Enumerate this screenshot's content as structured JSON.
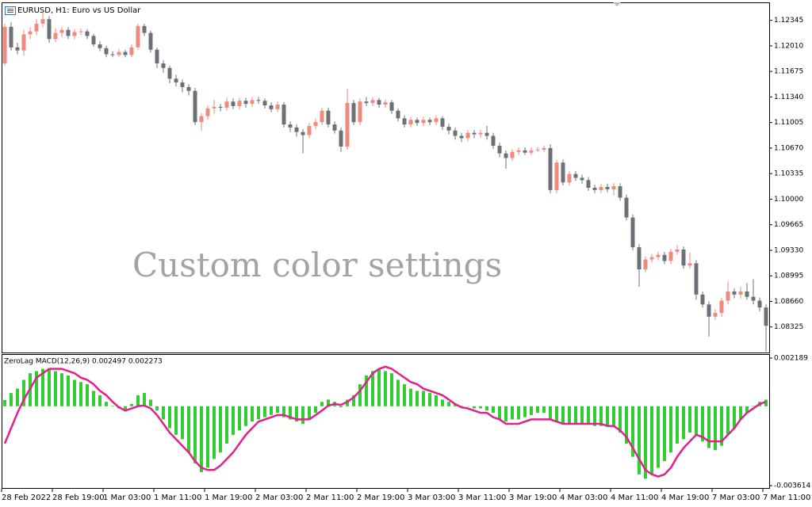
{
  "chart_data": [
    {
      "type": "candlestick",
      "title": "EURUSD, H1:  Euro vs US Dollar",
      "annotation": "Custom color settings",
      "categories": [
        "28 Feb 2022",
        null,
        null,
        null,
        null,
        null,
        null,
        null,
        "28 Feb 19:00",
        null,
        null,
        null,
        null,
        null,
        null,
        null,
        "1 Mar 03:00",
        null,
        null,
        null,
        null,
        null,
        null,
        null,
        "1 Mar 11:00",
        null,
        null,
        null,
        null,
        null,
        null,
        null,
        "1 Mar 19:00",
        null,
        null,
        null,
        null,
        null,
        null,
        null,
        "2 Mar 03:00",
        null,
        null,
        null,
        null,
        null,
        null,
        null,
        "2 Mar 11:00",
        null,
        null,
        null,
        null,
        null,
        null,
        null,
        "2 Mar 19:00",
        null,
        null,
        null,
        null,
        null,
        null,
        null,
        "3 Mar 03:00",
        null,
        null,
        null,
        null,
        null,
        null,
        null,
        "3 Mar 11:00",
        null,
        null,
        null,
        null,
        null,
        null,
        null,
        "3 Mar 19:00",
        null,
        null,
        null,
        null,
        null,
        null,
        null,
        "4 Mar 03:00",
        null,
        null,
        null,
        null,
        null,
        null,
        null,
        "4 Mar 11:00",
        null,
        null,
        null,
        null,
        null,
        null,
        null,
        "4 Mar 19:00",
        null,
        null,
        null,
        null,
        null,
        null,
        null,
        "7 Mar 03:00",
        null,
        null,
        null,
        null,
        null,
        null,
        null,
        "7 Mar 11:00"
      ],
      "open": [
        1.1178,
        1.1226,
        1.1199,
        1.1195,
        1.1216,
        1.122,
        1.123,
        1.1236,
        1.121,
        1.1218,
        1.1222,
        1.1214,
        1.1219,
        1.122,
        1.1214,
        1.1203,
        1.1198,
        1.119,
        1.1189,
        1.1193,
        1.1189,
        1.1199,
        1.1227,
        1.1218,
        1.1196,
        1.1178,
        1.1172,
        1.1158,
        1.1153,
        1.1147,
        1.1142,
        1.1101,
        1.1109,
        1.1119,
        1.1121,
        1.112,
        1.1128,
        1.1122,
        1.1129,
        1.1125,
        1.113,
        1.1129,
        1.1123,
        1.1118,
        1.1124,
        1.1098,
        1.1094,
        1.1088,
        1.1084,
        1.1096,
        1.1101,
        1.1116,
        1.1098,
        1.109,
        1.1069,
        1.1126,
        1.1101,
        1.1128,
        1.1126,
        1.113,
        1.1124,
        1.1127,
        1.1116,
        1.1106,
        1.1098,
        1.1104,
        1.11,
        1.1104,
        1.1101,
        1.1106,
        1.1095,
        1.109,
        1.1083,
        1.108,
        1.1087,
        1.1085,
        1.1087,
        1.1083,
        1.107,
        1.106,
        1.1054,
        1.1062,
        1.1064,
        1.1061,
        1.1064,
        1.1065,
        1.1067,
        1.1012,
        1.1048,
        1.1022,
        1.1033,
        1.1028,
        1.1025,
        1.1015,
        1.1012,
        1.1016,
        1.1013,
        1.1017,
        1.1002,
        1.0976,
        1.0937,
        1.0908,
        1.0921,
        1.0924,
        1.0927,
        1.0919,
        1.0931,
        1.0934,
        1.0913,
        1.0916,
        1.0875,
        1.0862,
        1.0846,
        1.0851,
        1.0867,
        1.0879,
        1.0875,
        1.0879,
        1.0872,
        1.0867,
        1.0858
      ],
      "high": [
        1.123,
        1.1232,
        1.1205,
        1.1222,
        1.1225,
        1.1236,
        1.125,
        1.124,
        1.1224,
        1.1226,
        1.1226,
        1.1223,
        1.1224,
        1.1223,
        1.1217,
        1.1207,
        1.1201,
        1.1194,
        1.1197,
        1.1196,
        1.1203,
        1.123,
        1.123,
        1.1221,
        1.1199,
        1.1182,
        1.1175,
        1.1163,
        1.1157,
        1.1151,
        1.1146,
        1.1113,
        1.1123,
        1.113,
        1.1125,
        1.1133,
        1.1132,
        1.1133,
        1.1133,
        1.1134,
        1.1134,
        1.1132,
        1.1127,
        1.1128,
        1.1127,
        1.1102,
        1.1098,
        1.1092,
        1.11,
        1.1106,
        1.112,
        1.112,
        1.1102,
        1.1094,
        1.1145,
        1.113,
        1.1132,
        1.1134,
        1.1134,
        1.1133,
        1.1131,
        1.113,
        1.1119,
        1.111,
        1.1108,
        1.1107,
        1.1108,
        1.1107,
        1.111,
        1.1109,
        1.1099,
        1.1094,
        1.1087,
        1.1091,
        1.1091,
        1.1091,
        1.1096,
        1.1087,
        1.1074,
        1.1064,
        1.1066,
        1.1068,
        1.1068,
        1.1068,
        1.1068,
        1.107,
        1.1072,
        1.1052,
        1.1052,
        1.1037,
        1.1037,
        1.1032,
        1.1029,
        1.1019,
        1.102,
        1.102,
        1.1021,
        1.1021,
        1.1006,
        1.098,
        1.0941,
        1.0925,
        1.0928,
        1.0931,
        1.0931,
        1.0935,
        1.094,
        1.0938,
        1.093,
        1.092,
        1.0879,
        1.0866,
        1.0856,
        1.0871,
        1.0892,
        1.0883,
        1.0885,
        1.089,
        1.0895,
        1.0871,
        1.0862
      ],
      "low": [
        1.1175,
        1.1195,
        1.119,
        1.1188,
        1.121,
        1.1215,
        1.1225,
        1.1205,
        1.1206,
        1.1212,
        1.121,
        1.121,
        1.1215,
        1.121,
        1.12,
        1.1194,
        1.1186,
        1.1186,
        1.1186,
        1.1186,
        1.1186,
        1.1196,
        1.1214,
        1.1192,
        1.1172,
        1.1166,
        1.1152,
        1.1148,
        1.114,
        1.1136,
        1.1097,
        1.109,
        1.1104,
        1.1112,
        1.1115,
        1.1116,
        1.1118,
        1.1118,
        1.112,
        1.1121,
        1.1125,
        1.1119,
        1.1114,
        1.1114,
        1.1094,
        1.1088,
        1.1082,
        1.106,
        1.108,
        1.1092,
        1.1097,
        1.1094,
        1.1086,
        1.1062,
        1.1065,
        1.1097,
        1.1097,
        1.1122,
        1.1122,
        1.112,
        1.112,
        1.1112,
        1.1102,
        1.1094,
        1.1094,
        1.1096,
        1.1096,
        1.1097,
        1.1097,
        1.1091,
        1.1085,
        1.1078,
        1.1075,
        1.1076,
        1.108,
        1.1081,
        1.1078,
        1.1066,
        1.1055,
        1.104,
        1.105,
        1.1058,
        1.1058,
        1.1058,
        1.1062,
        1.1062,
        1.1008,
        1.1008,
        1.1018,
        1.1018,
        1.1024,
        1.102,
        1.1011,
        1.1008,
        1.1008,
        1.1009,
        1.1005,
        1.0998,
        1.0972,
        1.0933,
        1.0885,
        1.0904,
        1.0917,
        1.092,
        1.0915,
        1.0915,
        1.0927,
        1.0909,
        1.0909,
        1.0868,
        1.0858,
        1.082,
        1.0842,
        1.0846,
        1.0862,
        1.087,
        1.087,
        1.0868,
        1.0862,
        1.0853,
        1.08
      ],
      "close": [
        1.1226,
        1.1199,
        1.1195,
        1.1216,
        1.122,
        1.123,
        1.1236,
        1.121,
        1.1218,
        1.1222,
        1.1214,
        1.1219,
        1.122,
        1.1214,
        1.1203,
        1.1198,
        1.119,
        1.1189,
        1.1193,
        1.1189,
        1.1199,
        1.1227,
        1.1218,
        1.1196,
        1.1178,
        1.1172,
        1.1158,
        1.1153,
        1.1147,
        1.1142,
        1.1101,
        1.1109,
        1.1119,
        1.1121,
        1.112,
        1.1128,
        1.1122,
        1.1129,
        1.1125,
        1.113,
        1.1129,
        1.1123,
        1.1118,
        1.1124,
        1.1098,
        1.1094,
        1.1088,
        1.1084,
        1.1096,
        1.1101,
        1.1116,
        1.1098,
        1.109,
        1.1069,
        1.1126,
        1.1101,
        1.1128,
        1.1126,
        1.113,
        1.1124,
        1.1127,
        1.1116,
        1.1106,
        1.1098,
        1.1104,
        1.11,
        1.1104,
        1.1101,
        1.1106,
        1.1095,
        1.109,
        1.1083,
        1.108,
        1.1087,
        1.1085,
        1.1087,
        1.1083,
        1.107,
        1.106,
        1.1054,
        1.1062,
        1.1064,
        1.1061,
        1.1064,
        1.1065,
        1.1067,
        1.1012,
        1.1048,
        1.1022,
        1.1033,
        1.1028,
        1.1025,
        1.1015,
        1.1012,
        1.1016,
        1.1013,
        1.1017,
        1.1002,
        1.0976,
        1.0937,
        1.0908,
        1.0921,
        1.0924,
        1.0927,
        1.0919,
        1.0931,
        1.0934,
        1.0913,
        1.0916,
        1.0875,
        1.0862,
        1.0846,
        1.0851,
        1.0867,
        1.0879,
        1.0875,
        1.0879,
        1.0872,
        1.0867,
        1.0858,
        1.0834
      ],
      "up_color": "#ee8a7f",
      "down_color": "#6d7077",
      "ylim": [
        1.0799,
        1.1258
      ],
      "yticks": [
        1.12345,
        {
          "value": 1.1201,
          "label": "1.12010"
        },
        1.11675,
        {
          "value": 1.1134,
          "label": "1.11340"
        },
        1.11005,
        {
          "value": 1.1067,
          "label": "1.10670"
        },
        1.10335,
        {
          "value": 1.1,
          "label": "1.10000"
        },
        1.09665,
        {
          "value": 1.0933,
          "label": "1.09330"
        },
        1.08995,
        {
          "value": 1.0866,
          "label": "1.08660"
        },
        1.08325
      ]
    },
    {
      "type": "macd",
      "title": "ZeroLag MACD(12,26,9) 0.002497 0.002273",
      "series": [
        {
          "type": "bar",
          "color": "#32cd32",
          "values": [
            0.00028,
            0.0006,
            0.0008,
            0.0012,
            0.0015,
            0.0016,
            0.0017,
            0.0017,
            0.0016,
            0.0015,
            0.0014,
            0.0012,
            0.0011,
            0.001,
            0.0007,
            0.0005,
            0.0002,
            2e-05,
            -0.0001,
            -0.0002,
            0.0001,
            0.0005,
            0.0006,
            0.0003,
            -0.0002,
            -0.0006,
            -0.001,
            -0.0013,
            -0.0015,
            -0.0021,
            -0.0026,
            -0.003,
            -0.0028,
            -0.0024,
            -0.0021,
            -0.0017,
            -0.0013,
            -0.0011,
            -0.0009,
            -0.0007,
            -0.0006,
            -0.0005,
            -0.0004,
            -0.0003,
            -0.0005,
            -0.0006,
            -0.0007,
            -0.0008,
            -0.0006,
            -0.0003,
            0.0002,
            0.0003,
            0.0002,
            -5e-05,
            0.0003,
            0.0005,
            0.001,
            0.0014,
            0.0016,
            0.0017,
            0.0016,
            0.0015,
            0.0012,
            0.001,
            0.0008,
            0.0007,
            0.0007,
            0.0006,
            0.0005,
            0.0003,
            0.0002,
            0.0001,
            2e-05,
            -1e-05,
            -0.0001,
            -0.0001,
            -0.0002,
            -0.0003,
            -0.0006,
            -0.0007,
            -0.0006,
            -0.0006,
            -0.0005,
            -0.0004,
            -0.0003,
            -0.0003,
            -0.0006,
            -0.0007,
            -0.0008,
            -0.0008,
            -0.0008,
            -0.0008,
            -0.0008,
            -0.0009,
            -0.0009,
            -0.0009,
            -0.0009,
            -0.0012,
            -0.0017,
            -0.0023,
            -0.0031,
            -0.0033,
            -0.0031,
            -0.0028,
            -0.0025,
            -0.0021,
            -0.0017,
            -0.0015,
            -0.0012,
            -0.0013,
            -0.0016,
            -0.0019,
            -0.002,
            -0.0018,
            -0.0013,
            -0.001,
            -0.0006,
            -0.0003,
            2e-05,
            0.0002,
            0.0003
          ]
        },
        {
          "type": "line",
          "color": "#e3208c",
          "values": [
            -0.0017,
            -0.001,
            -0.0003,
            0.0003,
            0.0008,
            0.0013,
            0.0015,
            0.0017,
            0.0017,
            0.0017,
            0.0016,
            0.0015,
            0.0013,
            0.0012,
            0.001,
            0.0007,
            0.0005,
            0.0002,
            -5e-05,
            -0.0002,
            -0.0001,
            0,
            3e-05,
            -0.0001,
            -0.0004,
            -0.0008,
            -0.0012,
            -0.0015,
            -0.0018,
            -0.0021,
            -0.0025,
            -0.0028,
            -0.0029,
            -0.0029,
            -0.0027,
            -0.0024,
            -0.0021,
            -0.0017,
            -0.0013,
            -0.001,
            -0.0007,
            -0.0006,
            -0.0005,
            -0.0004,
            -0.0004,
            -0.0005,
            -0.0006,
            -0.0006,
            -0.0006,
            -0.0004,
            -0.0002,
            3e-05,
            0.0001,
            6e-05,
            0.0002,
            0.0004,
            0.0007,
            0.0011,
            0.0015,
            0.0017,
            0.0018,
            0.0017,
            0.0015,
            0.0013,
            0.0011,
            0.001,
            0.0008,
            0.0007,
            0.0006,
            0.0005,
            0.0003,
            0.0001,
            -5e-05,
            -0.0001,
            -0.0002,
            -0.0003,
            -0.0003,
            -0.0005,
            -0.0006,
            -0.0008,
            -0.0008,
            -0.0008,
            -0.0007,
            -0.0006,
            -0.0006,
            -0.0006,
            -0.0006,
            -0.0007,
            -0.0008,
            -0.0008,
            -0.0008,
            -0.0008,
            -0.0008,
            -0.0008,
            -0.0008,
            -0.0009,
            -0.0009,
            -0.0011,
            -0.0014,
            -0.0019,
            -0.0024,
            -0.0029,
            -0.0031,
            -0.0032,
            -0.0031,
            -0.0028,
            -0.0023,
            -0.0019,
            -0.0016,
            -0.0013,
            -0.0014,
            -0.0016,
            -0.0016,
            -0.0016,
            -0.0013,
            -0.001,
            -0.0006,
            -0.0003,
            -0.0001,
            0.0001,
            0.0002
          ]
        }
      ],
      "ylim": [
        -0.00372,
        0.00237
      ],
      "yticks": [
        0.002189,
        -0.003614
      ]
    }
  ]
}
